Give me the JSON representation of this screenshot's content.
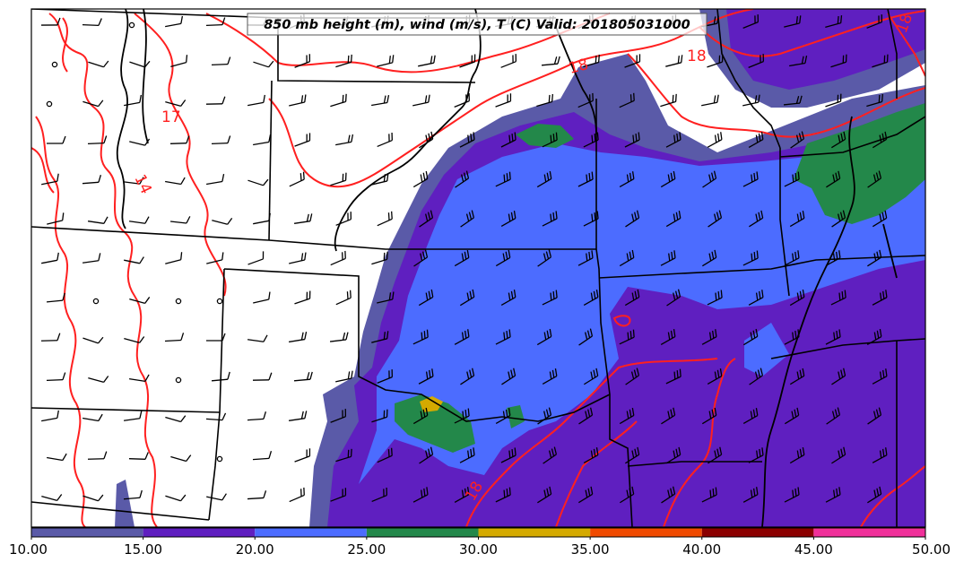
{
  "title": "850 mb height (m), wind (m/s), T (C) Valid: 201805031000",
  "colors": {
    "band_10_15": "#5a5aa8",
    "band_15_20": "#5f1fc0",
    "band_20_25": "#4c6cff",
    "band_25_30": "#23884a",
    "band_30_35": "#d4aa00",
    "band_35_40": "#f04a00",
    "band_40_45": "#8b0000",
    "band_45_50": "#f0309a",
    "temperature_contour": "#ff2020",
    "boundaries": "#000000"
  },
  "temperature_contour_labels": [
    {
      "text": "17",
      "role": "west-plains"
    },
    {
      "text": "14",
      "role": "colorado-foothills"
    },
    {
      "text": "18",
      "role": "upper-midwest"
    },
    {
      "text": "18",
      "role": "great-lakes"
    },
    {
      "text": "18",
      "role": "northeast-corner"
    },
    {
      "text": "18",
      "role": "texas-south"
    }
  ],
  "colorbar": {
    "ticks": [
      "10.00",
      "15.00",
      "20.00",
      "25.00",
      "30.00",
      "35.00",
      "40.00",
      "45.00",
      "50.00"
    ],
    "min": 10,
    "max": 50,
    "bands": [
      {
        "from": 10,
        "to": 15,
        "color": "#5a5aa8"
      },
      {
        "from": 15,
        "to": 20,
        "color": "#5f1fc0"
      },
      {
        "from": 20,
        "to": 25,
        "color": "#4c6cff"
      },
      {
        "from": 25,
        "to": 30,
        "color": "#23884a"
      },
      {
        "from": 30,
        "to": 35,
        "color": "#d4aa00"
      },
      {
        "from": 35,
        "to": 40,
        "color": "#f04a00"
      },
      {
        "from": 40,
        "to": 45,
        "color": "#8b0000"
      },
      {
        "from": 45,
        "to": 50,
        "color": "#f0309a"
      }
    ]
  },
  "icons": {
    "wind_barb": "wind-barb-icon",
    "calm_circle": "calm-wind-circle-icon"
  }
}
